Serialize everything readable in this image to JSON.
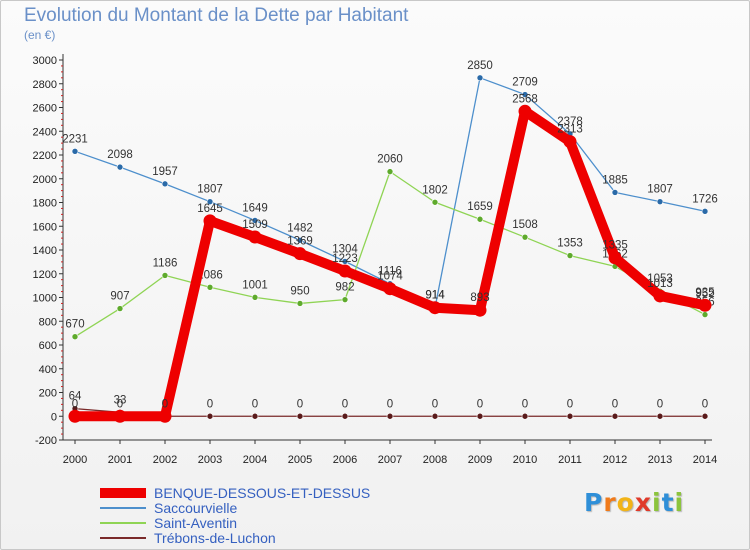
{
  "header": {
    "title": "Evolution du Montant de la Dette par Habitant",
    "unit": "(en €)"
  },
  "brand": {
    "letters": [
      "P",
      "r",
      "o",
      "x",
      "i",
      "t",
      "i"
    ],
    "colors": [
      "#2f8fd8",
      "#f07a1a",
      "#f2b418",
      "#e03a2a",
      "#8cc43c",
      "#2f8fd8",
      "#8cc43c"
    ]
  },
  "chart_data": {
    "type": "line",
    "title": "Evolution du Montant de la Dette par Habitant",
    "ylabel": "(en €)",
    "xlabel": "",
    "x": [
      "2000",
      "2001",
      "2002",
      "2003",
      "2004",
      "2005",
      "2006",
      "2007",
      "2008",
      "2009",
      "2010",
      "2011",
      "2012",
      "2013",
      "2014"
    ],
    "ylim": [
      -200,
      3000
    ],
    "yticks": [
      "-200",
      "0",
      "200",
      "400",
      "600",
      "800",
      "1000",
      "1200",
      "1400",
      "1600",
      "1800",
      "2000",
      "2200",
      "2400",
      "2600",
      "2800",
      "3000"
    ],
    "grid": false,
    "legend_position": "bottom-left",
    "series": [
      {
        "name": "BENQUE-DESSOUS-ET-DESSUS",
        "color": "#ee0000",
        "values": [
          0,
          0,
          0,
          1645,
          1509,
          1369,
          1223,
          1074,
          914,
          893,
          2568,
          2313,
          1335,
          1013,
          935
        ],
        "labels": [
          "0",
          "0",
          "0",
          "1645",
          "1509",
          "1369",
          "1223",
          "1074",
          "914",
          "893",
          "2568",
          "2313",
          "1335",
          "1013",
          "935"
        ]
      },
      {
        "name": "Saccourvielle",
        "color": "#4d8fcc",
        "values": [
          2231,
          2098,
          1957,
          1807,
          1649,
          1482,
          1304,
          1116,
          914,
          2850,
          2709,
          2378,
          1885,
          1807,
          1726
        ],
        "labels": [
          "2231",
          "2098",
          "1957",
          "1807",
          "1649",
          "1482",
          "1304",
          "1116",
          "914",
          "2850",
          "2709",
          "2378",
          "1885",
          "1807",
          "1726"
        ]
      },
      {
        "name": "Saint-Aventin",
        "color": "#8fd454",
        "values": [
          670,
          907,
          1186,
          1086,
          1001,
          950,
          982,
          2060,
          1802,
          1659,
          1508,
          1353,
          1262,
          1053,
          856
        ],
        "labels": [
          "670",
          "907",
          "1186",
          "1086",
          "1001",
          "950",
          "982",
          "2060",
          "1802",
          "1659",
          "1508",
          "1353",
          "1262",
          "1053",
          "856"
        ]
      },
      {
        "name": "Trébons-de-Luchon",
        "color": "#7a2a2a",
        "values": [
          64,
          33,
          0,
          0,
          0,
          0,
          0,
          0,
          0,
          0,
          0,
          0,
          0,
          0,
          0
        ],
        "labels": [
          "64",
          "33",
          "0",
          "0",
          "0",
          "0",
          "0",
          "0",
          "0",
          "0",
          "0",
          "0",
          "0",
          "0",
          "0"
        ]
      }
    ],
    "extra_label": "952"
  }
}
